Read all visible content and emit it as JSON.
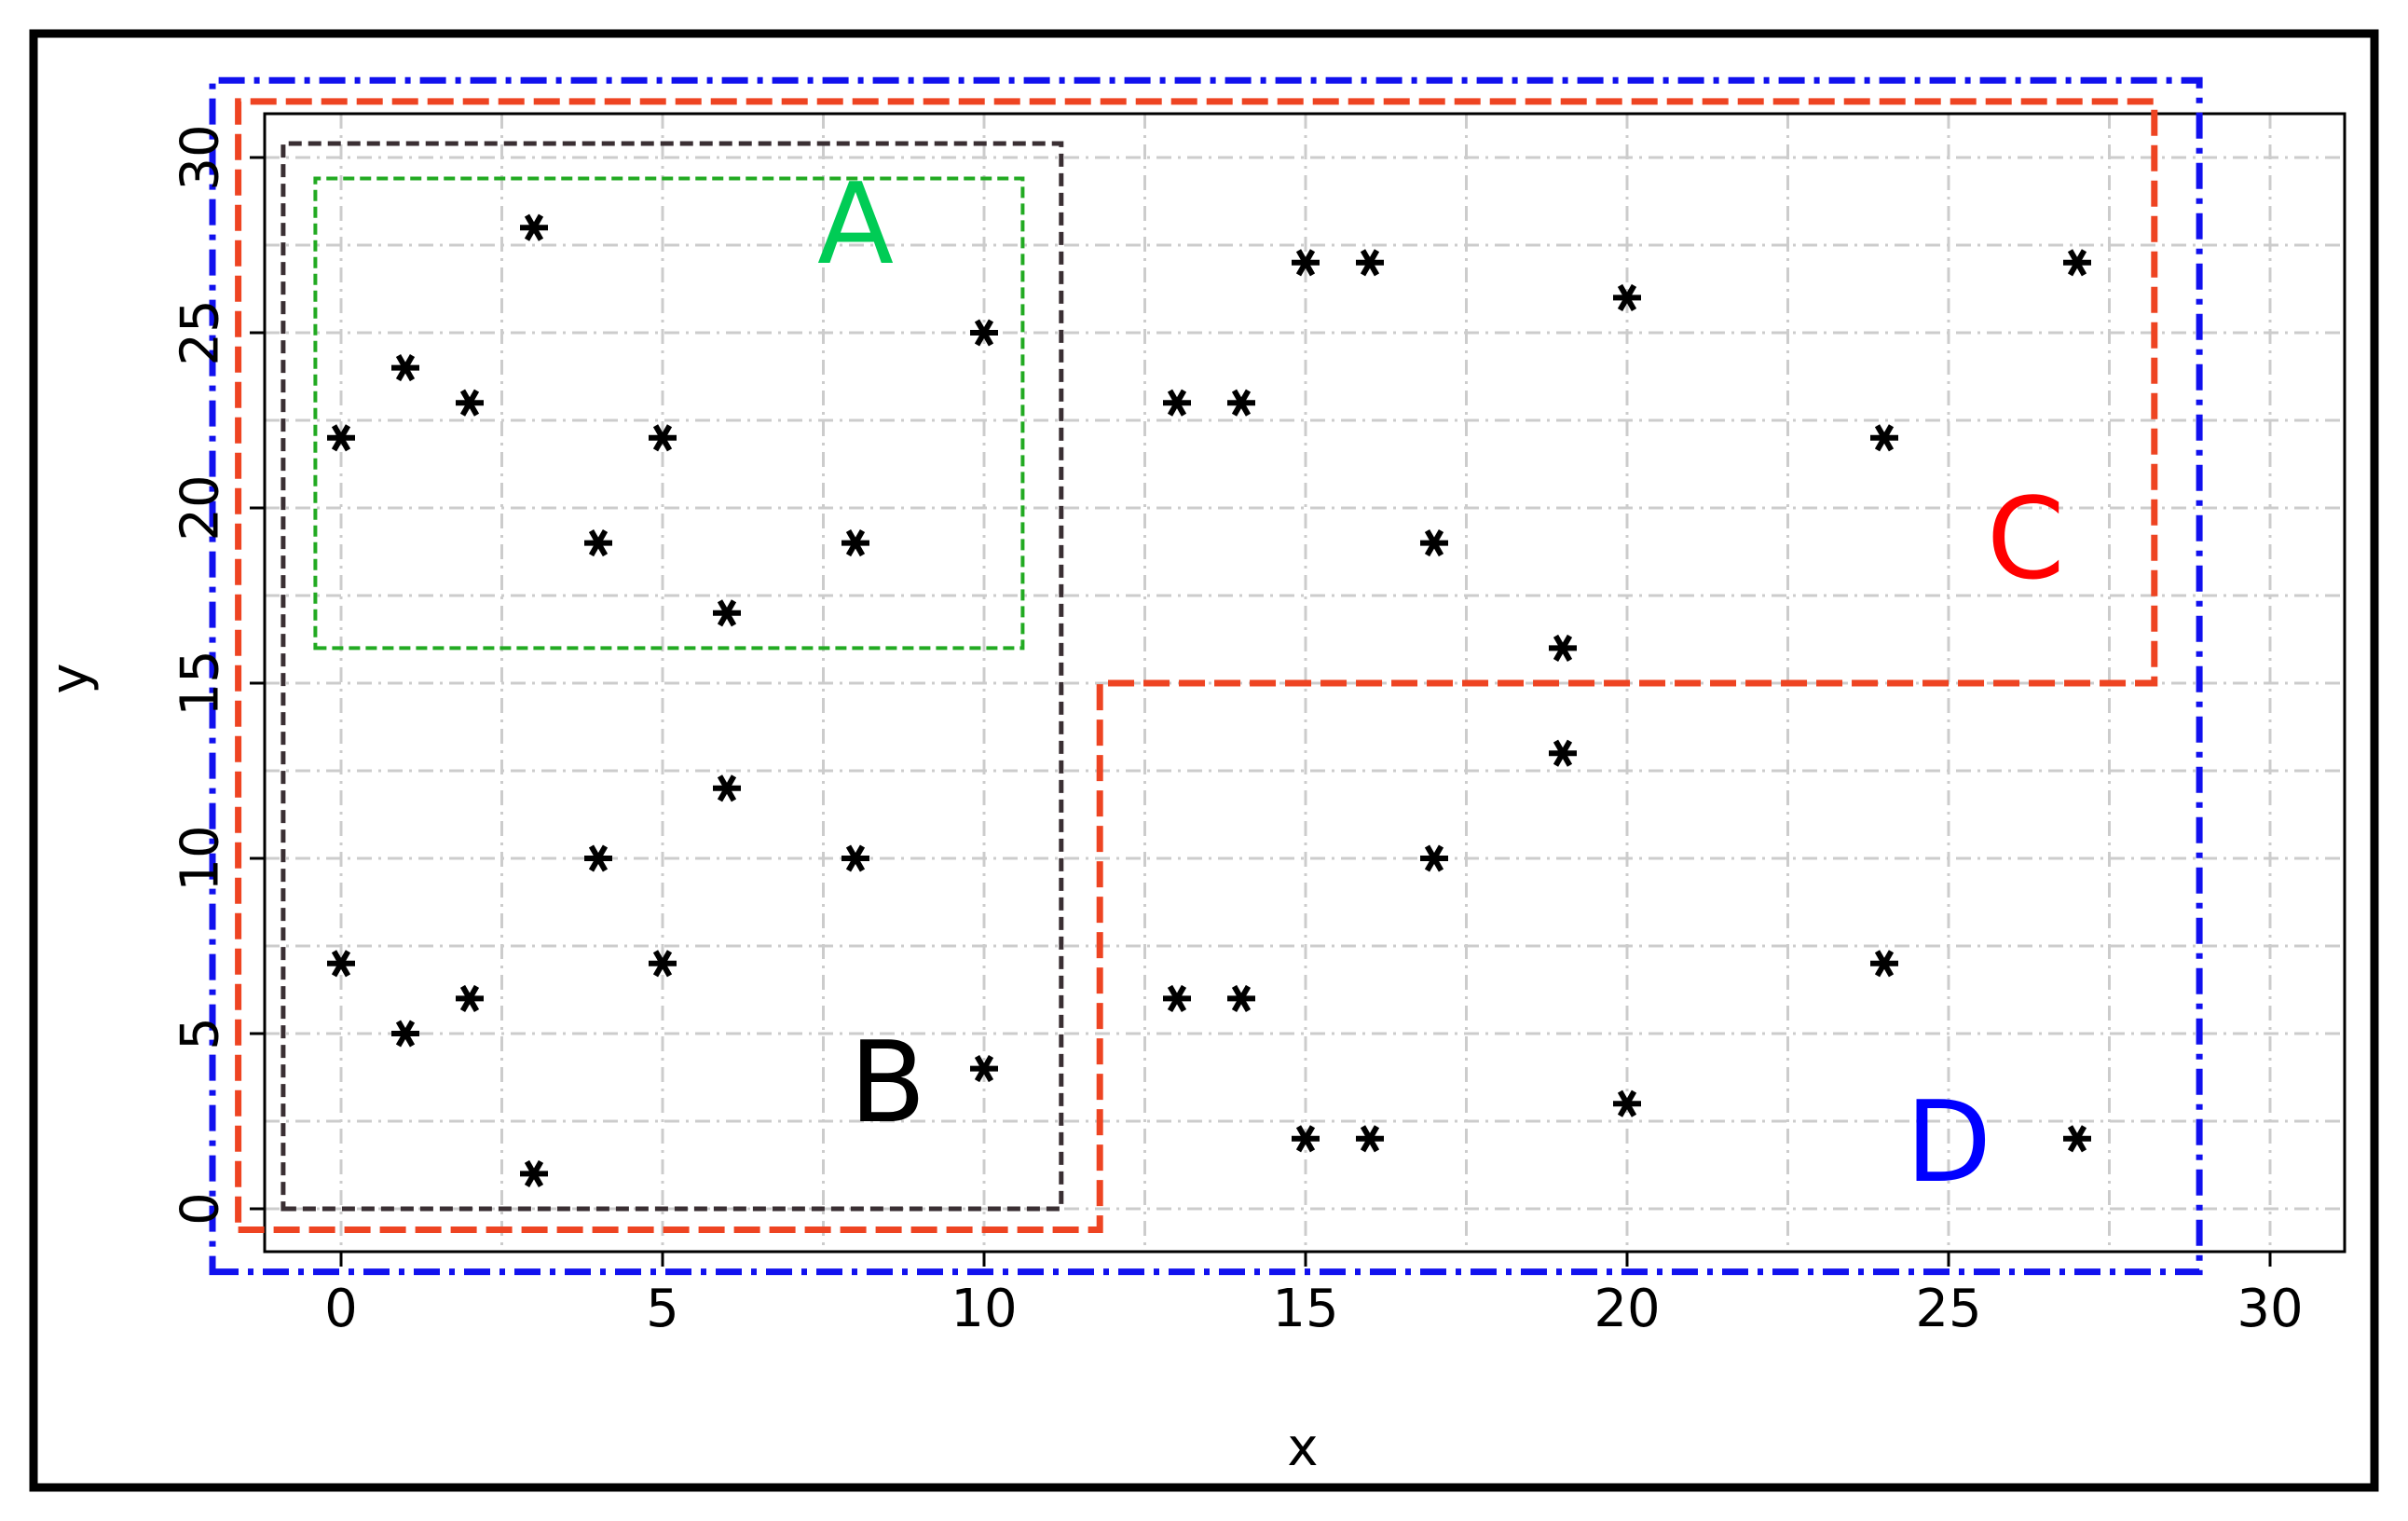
{
  "chart_data": {
    "type": "scatter",
    "title": "",
    "xlabel": "x",
    "ylabel": "y",
    "xlim": [
      -1.2,
      31.2
    ],
    "ylim": [
      -1.2,
      31.8
    ],
    "xticks": [
      "0",
      "5",
      "10",
      "15",
      "20",
      "25",
      "30"
    ],
    "yticks": [
      "0",
      "5",
      "10",
      "15",
      "20",
      "25",
      "30"
    ],
    "grid": true,
    "marker": "asterisk",
    "points": [
      {
        "x": 0,
        "y": 22
      },
      {
        "x": 1,
        "y": 24
      },
      {
        "x": 2,
        "y": 23
      },
      {
        "x": 3,
        "y": 28
      },
      {
        "x": 4,
        "y": 19
      },
      {
        "x": 5,
        "y": 22
      },
      {
        "x": 6,
        "y": 17
      },
      {
        "x": 8,
        "y": 19
      },
      {
        "x": 10,
        "y": 25
      },
      {
        "x": 0,
        "y": 7
      },
      {
        "x": 1,
        "y": 5
      },
      {
        "x": 2,
        "y": 6
      },
      {
        "x": 3,
        "y": 1
      },
      {
        "x": 4,
        "y": 10
      },
      {
        "x": 5,
        "y": 7
      },
      {
        "x": 6,
        "y": 12
      },
      {
        "x": 8,
        "y": 10
      },
      {
        "x": 10,
        "y": 4
      },
      {
        "x": 13,
        "y": 23
      },
      {
        "x": 14,
        "y": 23
      },
      {
        "x": 15,
        "y": 27
      },
      {
        "x": 16,
        "y": 27
      },
      {
        "x": 17,
        "y": 19
      },
      {
        "x": 19,
        "y": 16
      },
      {
        "x": 20,
        "y": 26
      },
      {
        "x": 24,
        "y": 22
      },
      {
        "x": 27,
        "y": 27
      },
      {
        "x": 13,
        "y": 6
      },
      {
        "x": 14,
        "y": 6
      },
      {
        "x": 15,
        "y": 2
      },
      {
        "x": 16,
        "y": 2
      },
      {
        "x": 17,
        "y": 10
      },
      {
        "x": 19,
        "y": 13
      },
      {
        "x": 20,
        "y": 3
      },
      {
        "x": 24,
        "y": 7
      },
      {
        "x": 27,
        "y": 2
      }
    ],
    "regions": [
      {
        "label": "A",
        "color": "#00cc55",
        "stroke": "#22aa22",
        "polygon": [
          [
            -0.4,
            16
          ],
          [
            10.6,
            16
          ],
          [
            10.6,
            29.4
          ],
          [
            -0.4,
            29.4
          ]
        ],
        "label_at": [
          8,
          27
        ]
      },
      {
        "label": "B",
        "color": "#000000",
        "stroke": "#3a2f33",
        "polygon": [
          [
            -0.9,
            0
          ],
          [
            11.2,
            0
          ],
          [
            11.2,
            30.4
          ],
          [
            -0.9,
            30.4
          ]
        ],
        "label_at": [
          8.5,
          2.5
        ]
      },
      {
        "label": "C",
        "color": "#ff0000",
        "stroke": "#ee4422",
        "polygon": [
          [
            -1.6,
            -0.6
          ],
          [
            11.8,
            -0.6
          ],
          [
            11.8,
            15
          ],
          [
            28.2,
            15
          ],
          [
            28.2,
            31.6
          ],
          [
            -1.6,
            31.6
          ]
        ],
        "label_at": [
          26.2,
          18
        ]
      },
      {
        "label": "D",
        "color": "#0000ff",
        "stroke": "#1111ee",
        "polygon": [
          [
            -2.0,
            -1.8
          ],
          [
            28.9,
            -1.8
          ],
          [
            28.9,
            32.2
          ],
          [
            -2.0,
            32.2
          ]
        ],
        "label_at": [
          25,
          0.8
        ]
      }
    ]
  }
}
